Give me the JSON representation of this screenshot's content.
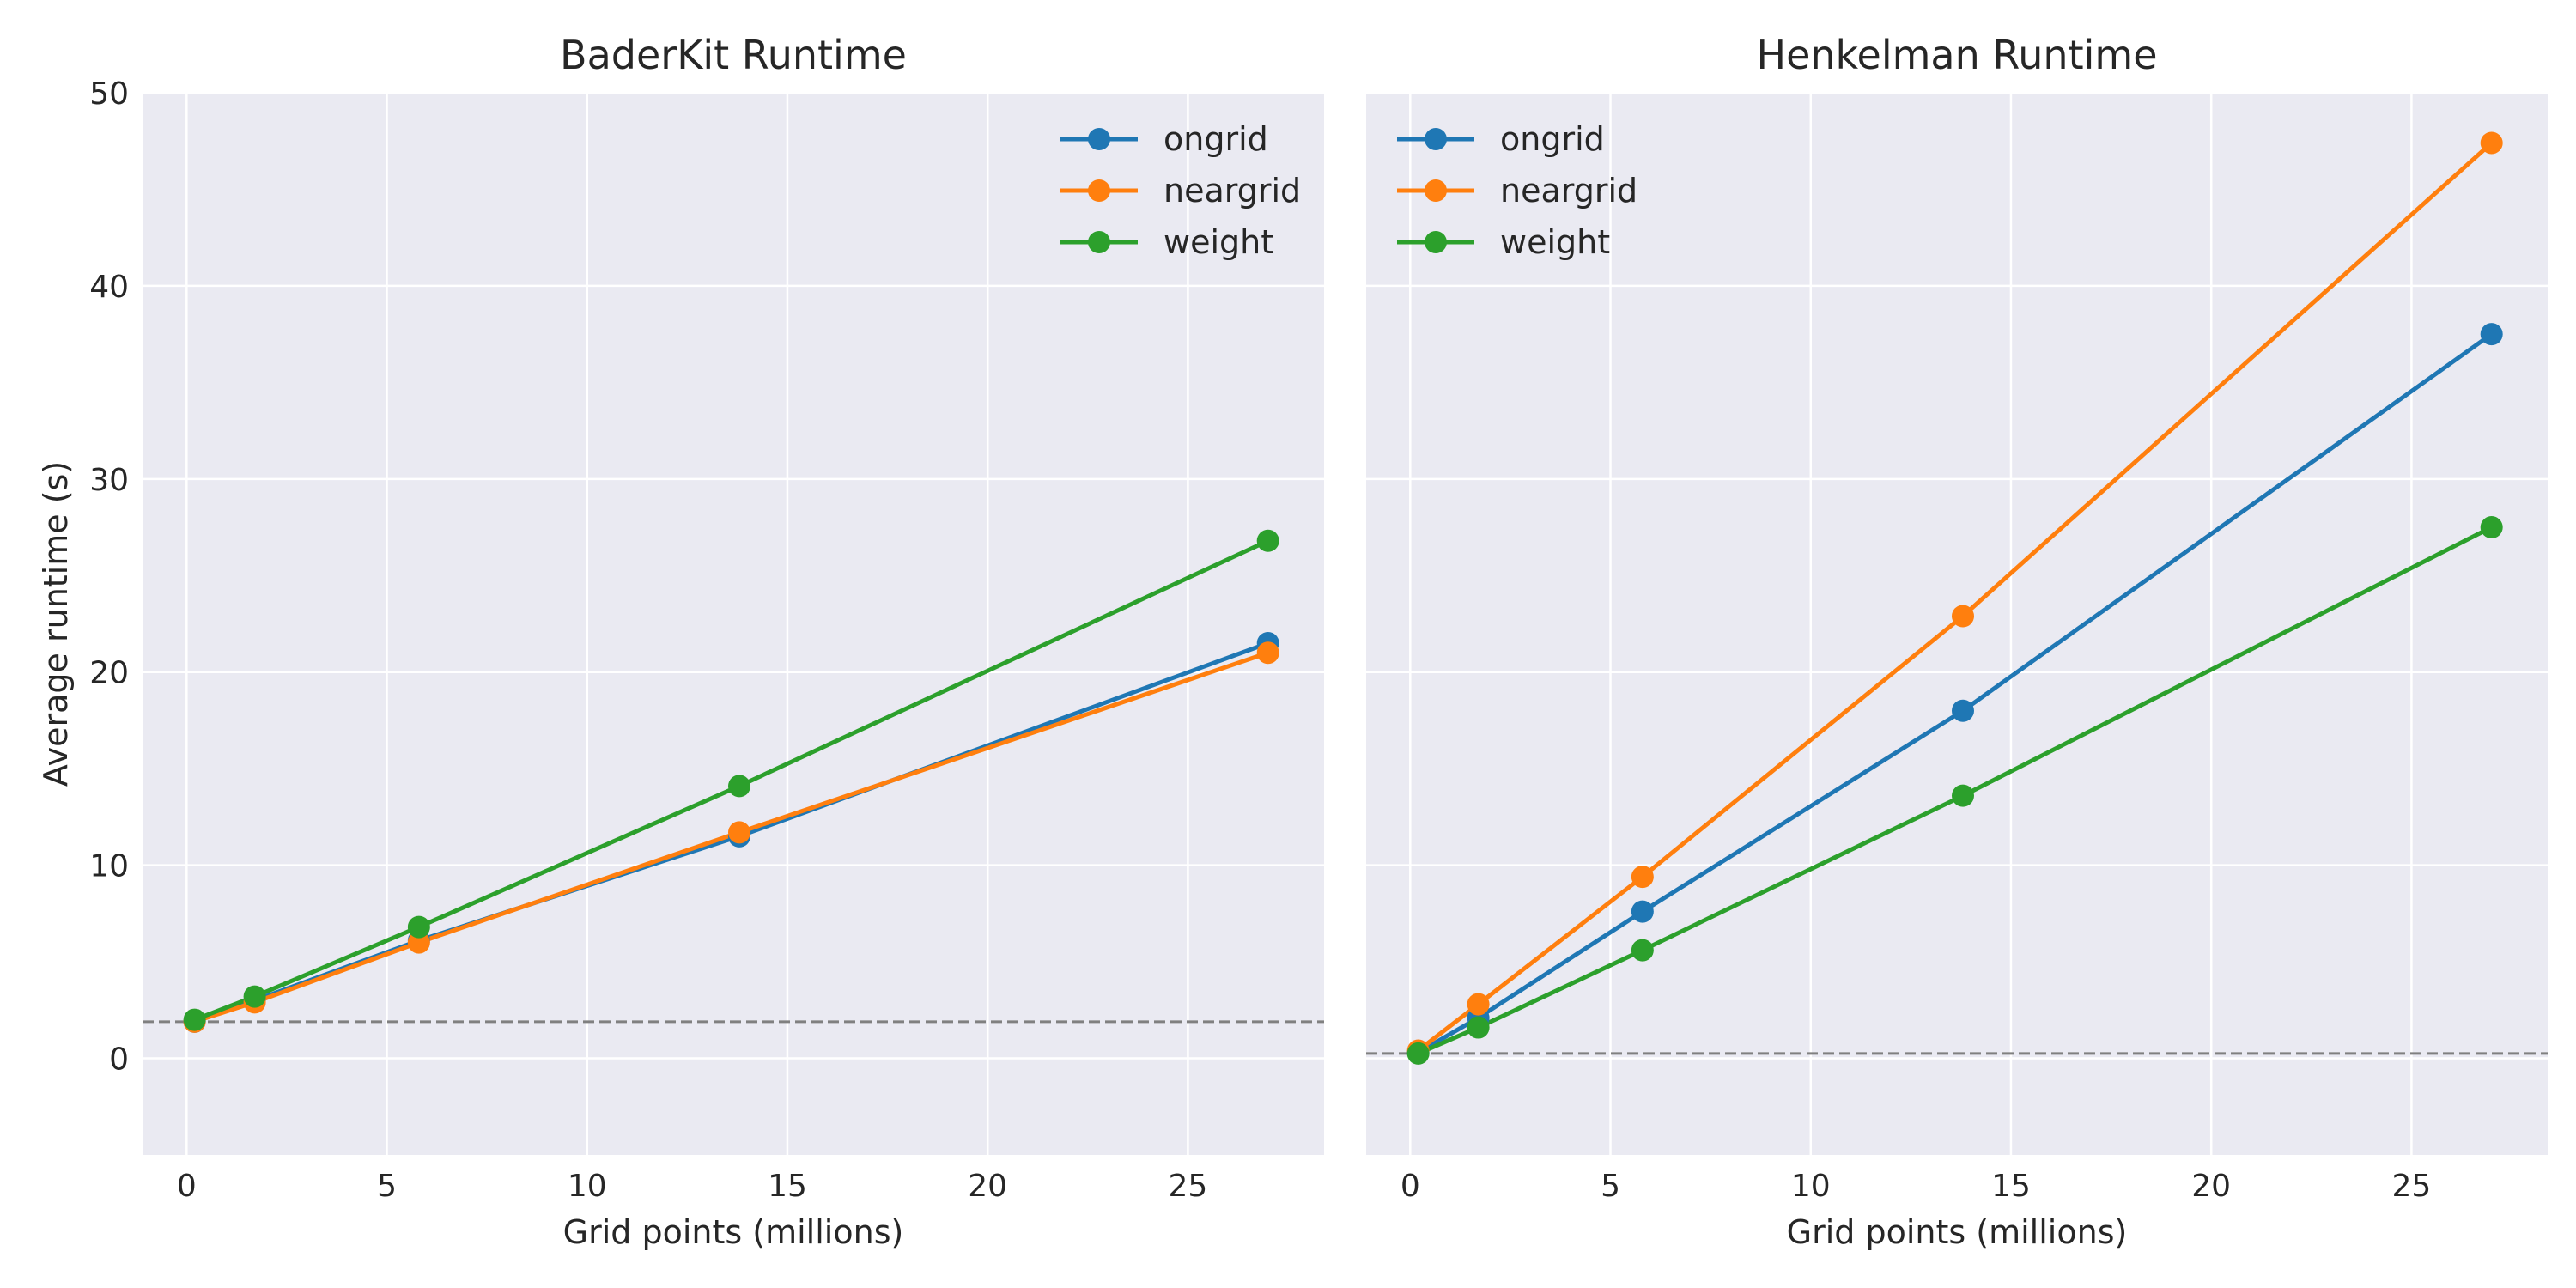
{
  "chart_data": [
    {
      "type": "line",
      "title": "BaderKit Runtime",
      "xlabel": "Grid points (millions)",
      "ylabel": "Average runtime (s)",
      "xlim": [
        -1.1,
        28.4
      ],
      "ylim": [
        -5,
        50
      ],
      "xticks": [
        0,
        5,
        10,
        15,
        20,
        25
      ],
      "yticks": [
        0,
        10,
        20,
        30,
        40,
        50
      ],
      "grid": true,
      "legend_position": "top-right",
      "reference_line": {
        "y": 1.9,
        "style": "dashed",
        "color": "#808080"
      },
      "series": [
        {
          "name": "ongrid",
          "color": "#1f77b4",
          "x": [
            0.2,
            1.7,
            5.8,
            13.8,
            27.0
          ],
          "y": [
            1.9,
            3.0,
            6.1,
            11.5,
            21.5
          ]
        },
        {
          "name": "neargrid",
          "color": "#ff7f0e",
          "x": [
            0.2,
            1.7,
            5.8,
            13.8,
            27.0
          ],
          "y": [
            1.9,
            2.9,
            6.0,
            11.7,
            21.0
          ]
        },
        {
          "name": "weight",
          "color": "#2ca02c",
          "x": [
            0.2,
            1.7,
            5.8,
            13.8,
            27.0
          ],
          "y": [
            2.0,
            3.2,
            6.8,
            14.1,
            26.8
          ]
        }
      ]
    },
    {
      "type": "line",
      "title": "Henkelman Runtime",
      "xlabel": "Grid points (millions)",
      "ylabel": "",
      "xlim": [
        -1.1,
        28.4
      ],
      "ylim": [
        -5,
        50
      ],
      "xticks": [
        0,
        5,
        10,
        15,
        20,
        25
      ],
      "yticks": [
        0,
        10,
        20,
        30,
        40,
        50
      ],
      "grid": true,
      "legend_position": "top-left",
      "reference_line": {
        "y": 0.25,
        "style": "dashed",
        "color": "#808080"
      },
      "series": [
        {
          "name": "ongrid",
          "color": "#1f77b4",
          "x": [
            0.2,
            1.7,
            5.8,
            13.8,
            27.0
          ],
          "y": [
            0.3,
            2.1,
            7.6,
            18.0,
            37.5
          ]
        },
        {
          "name": "neargrid",
          "color": "#ff7f0e",
          "x": [
            0.2,
            1.7,
            5.8,
            13.8,
            27.0
          ],
          "y": [
            0.4,
            2.8,
            9.4,
            22.9,
            47.4
          ]
        },
        {
          "name": "weight",
          "color": "#2ca02c",
          "x": [
            0.2,
            1.7,
            5.8,
            13.8,
            27.0
          ],
          "y": [
            0.25,
            1.6,
            5.6,
            13.6,
            27.5
          ]
        }
      ]
    }
  ],
  "colors": {
    "axes_background": "#eaeaf2",
    "grid": "#ffffff",
    "text": "#262626"
  }
}
